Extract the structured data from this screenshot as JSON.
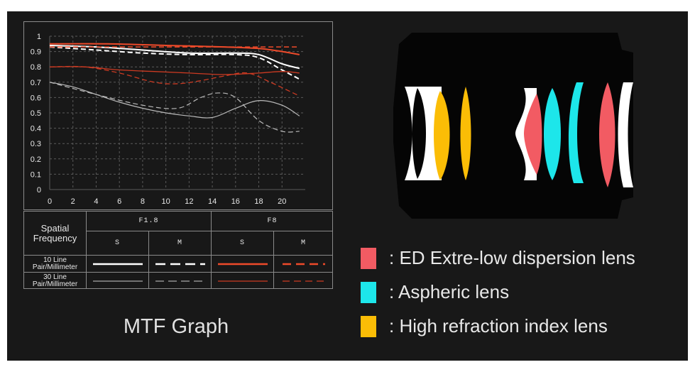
{
  "chart_data": {
    "type": "line",
    "title": "MTF Graph",
    "xlim": [
      0,
      22
    ],
    "ylim": [
      0,
      1
    ],
    "x_ticks": [
      "0",
      "2",
      "4",
      "6",
      "8",
      "10",
      "12",
      "14",
      "16",
      "18",
      "20"
    ],
    "y_ticks": [
      "0",
      "0.1",
      "0.2",
      "0.3",
      "0.4",
      "0.5",
      "0.6",
      "0.7",
      "0.8",
      "0.9",
      "1"
    ],
    "grid": true,
    "series": [
      {
        "name": "F1.8 S 10 Line Pair/Millimeter",
        "color": "#ffffff",
        "dash": "solid",
        "width": 2,
        "x": [
          0,
          4,
          8,
          12,
          16,
          18,
          20,
          21.5
        ],
        "y": [
          0.94,
          0.93,
          0.91,
          0.89,
          0.89,
          0.88,
          0.82,
          0.79
        ]
      },
      {
        "name": "F1.8 M 10 Line Pair/Millimeter",
        "color": "#ffffff",
        "dash": "dashed",
        "width": 2,
        "x": [
          0,
          4,
          8,
          12,
          16,
          18,
          20,
          21.5
        ],
        "y": [
          0.93,
          0.91,
          0.89,
          0.88,
          0.88,
          0.86,
          0.78,
          0.72
        ]
      },
      {
        "name": "F1.8 S 30 Line Pair/Millimeter",
        "color": "#bbbbbb",
        "dash": "solid",
        "width": 1.2,
        "x": [
          0,
          2,
          4,
          6,
          8,
          10,
          12,
          14,
          16,
          18,
          20,
          21.5
        ],
        "y": [
          0.7,
          0.67,
          0.62,
          0.57,
          0.53,
          0.5,
          0.48,
          0.47,
          0.53,
          0.58,
          0.55,
          0.48
        ]
      },
      {
        "name": "F1.8 M 30 Line Pair/Millimeter",
        "color": "#bbbbbb",
        "dash": "dashed",
        "width": 1.2,
        "x": [
          0,
          4,
          8,
          11,
          13,
          14.5,
          16,
          18,
          20,
          21.5
        ],
        "y": [
          0.7,
          0.62,
          0.55,
          0.53,
          0.6,
          0.63,
          0.6,
          0.45,
          0.38,
          0.38
        ]
      },
      {
        "name": "F8 S 10 Line Pair/Millimeter",
        "color": "#ee4a2a",
        "dash": "solid",
        "width": 2,
        "x": [
          0,
          5,
          10,
          15,
          18,
          20,
          21.5
        ],
        "y": [
          0.95,
          0.95,
          0.94,
          0.93,
          0.92,
          0.9,
          0.88
        ]
      },
      {
        "name": "F8 M 10 Line Pair/Millimeter",
        "color": "#ee4a2a",
        "dash": "dashed",
        "width": 1.6,
        "x": [
          0,
          5,
          10,
          15,
          18,
          20,
          21.5
        ],
        "y": [
          0.93,
          0.93,
          0.93,
          0.93,
          0.93,
          0.93,
          0.93
        ]
      },
      {
        "name": "F8 S 30 Line Pair/Millimeter",
        "color": "#cc3a22",
        "dash": "solid",
        "width": 1.3,
        "x": [
          0,
          3,
          6,
          9,
          12,
          15,
          18,
          20,
          21.5
        ],
        "y": [
          0.8,
          0.8,
          0.78,
          0.77,
          0.76,
          0.75,
          0.76,
          0.77,
          0.76
        ]
      },
      {
        "name": "F8 M 30 Line Pair/Millimeter",
        "color": "#cc3a22",
        "dash": "dashed",
        "width": 1.3,
        "x": [
          0,
          3,
          6,
          9,
          11,
          13,
          15,
          17,
          19,
          21.5
        ],
        "y": [
          0.8,
          0.8,
          0.76,
          0.7,
          0.69,
          0.71,
          0.74,
          0.76,
          0.7,
          0.61
        ]
      }
    ]
  },
  "legend_table": {
    "spatial_frequency": [
      "Spatial",
      "Frequency"
    ],
    "f18": "F1.8",
    "f8": "F8",
    "s": "S",
    "m": "M",
    "row10": [
      "10 Line",
      "Pair/Millimeter"
    ],
    "row30": [
      "30 Line",
      "Pair/Millimeter"
    ]
  },
  "graph_title": "MTF Graph",
  "lens_key": [
    {
      "label": ": ED Extre-low dispersion lens",
      "color": "#f25b63"
    },
    {
      "label": ": Aspheric lens",
      "color": "#1de6ea"
    },
    {
      "label": ": High refraction index lens",
      "color": "#fbbd06"
    }
  ]
}
